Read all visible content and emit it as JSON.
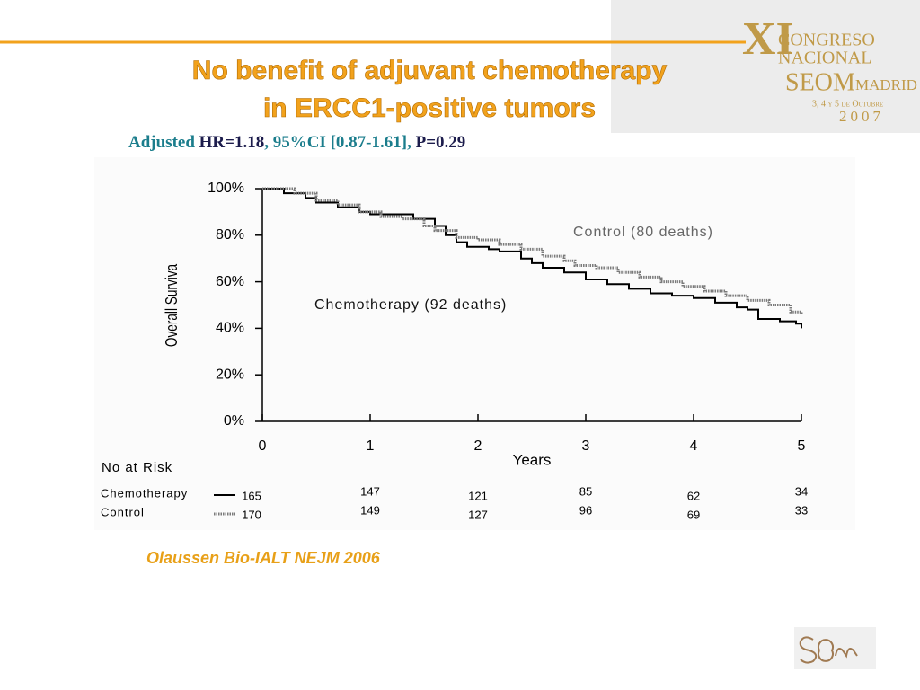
{
  "header": {
    "roman": "XI",
    "line1": "CONGRESO",
    "line2": "NACIONAL",
    "brand": "SEOM",
    "city": "MADRID",
    "dates": "3, 4 y 5 de Octubre",
    "year": "2007"
  },
  "chart_data": {
    "type": "step",
    "title": [
      "No benefit of adjuvant chemotherapy",
      "in  ERCC1-positive tumors"
    ],
    "title_color": "#f2a21c",
    "subtitle": [
      {
        "text": "Adjusted",
        "color": "#1b7d8c"
      },
      {
        "text": "HR=1.18",
        "color": "#1c1c4c"
      },
      {
        "text": ", 95%CI [0.87-1.61],",
        "color": "#1b7d8c"
      },
      {
        "text": "P=0.29",
        "color": "#1c1c4c"
      }
    ],
    "x_label": "Years",
    "y_label": "Overall Surviva",
    "xlim": [
      0,
      5
    ],
    "xticks": [
      0,
      1,
      2,
      3,
      4,
      5
    ],
    "ylim": [
      0,
      100
    ],
    "yticks": [
      {
        "value": 0,
        "label": "0%"
      },
      {
        "value": 20,
        "label": "20%"
      },
      {
        "value": 40,
        "label": "40%"
      },
      {
        "value": 60,
        "label": "60%"
      },
      {
        "value": 80,
        "label": "80%"
      },
      {
        "value": 100,
        "label": "100%"
      }
    ],
    "series": [
      {
        "name": "Chemotherapy",
        "label": "Chemotherapy (92 deaths)",
        "color": "#000000",
        "style": "solid",
        "x": [
          0,
          0.2,
          0.4,
          0.5,
          0.7,
          0.9,
          1.0,
          1.2,
          1.4,
          1.6,
          1.7,
          1.8,
          1.9,
          2.1,
          2.2,
          2.4,
          2.5,
          2.6,
          2.8,
          3.0,
          3.2,
          3.4,
          3.6,
          3.8,
          4.0,
          4.2,
          4.4,
          4.5,
          4.6,
          4.8,
          4.95,
          5.0
        ],
        "values": [
          100,
          98,
          96,
          94,
          92,
          90,
          89,
          89,
          87,
          84,
          80,
          77,
          75,
          74,
          73,
          70,
          68,
          66,
          64,
          61,
          59,
          57,
          55,
          54,
          53,
          51,
          49,
          48,
          44,
          43,
          42,
          40
        ],
        "at_risk": [
          165,
          147,
          121,
          85,
          62,
          34
        ]
      },
      {
        "name": "Control",
        "label": "Control (80 deaths)",
        "color": "#7a7a7a",
        "style": "dotted",
        "x": [
          0,
          0.3,
          0.5,
          0.7,
          0.9,
          1.1,
          1.3,
          1.5,
          1.6,
          1.8,
          2.0,
          2.2,
          2.4,
          2.6,
          2.8,
          2.9,
          3.1,
          3.3,
          3.5,
          3.7,
          3.9,
          4.1,
          4.3,
          4.5,
          4.7,
          4.9,
          5.0
        ],
        "values": [
          100,
          98,
          95,
          93,
          90,
          88,
          87,
          84,
          82,
          79,
          78,
          76,
          74,
          71,
          69,
          67,
          66,
          64,
          62,
          60,
          58,
          56,
          54,
          52,
          50,
          47,
          46
        ],
        "at_risk": [
          170,
          149,
          127,
          96,
          69,
          33
        ]
      }
    ],
    "at_risk_title": "No at Risk",
    "citation": "Olaussen Bio-IALT NEJM 2006"
  }
}
